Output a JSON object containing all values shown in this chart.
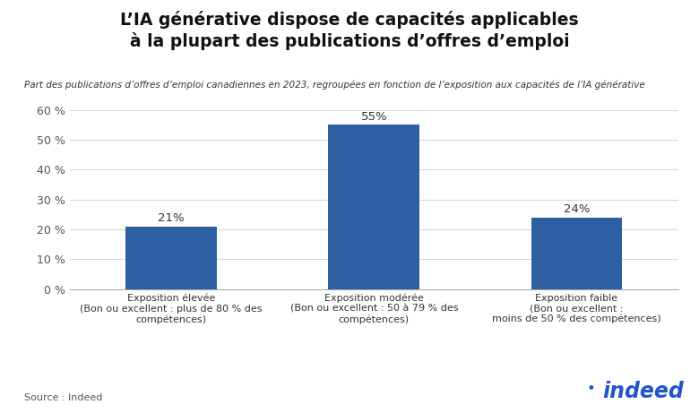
{
  "title_line1": "L’IA générative dispose de capacités applicables",
  "title_line2": "à la plupart des publications d’offres d’emploi",
  "subtitle": "Part des publications d’offres d’emploi canadiennes en 2023, regroupées en fonction de l’exposition aux capacités de l’IA générative",
  "categories": [
    "Exposition élevée\n(Bon ou excellent : plus de 80 % des\ncompétences)",
    "Exposition modérée\n(Bon ou excellent : 50 à 79 % des\ncompétences)",
    "Exposition faible\n(Bon ou excellent :\nmoins de 50 % des compétences)"
  ],
  "values": [
    21,
    55,
    24
  ],
  "bar_color": "#2E5FA3",
  "bar_labels": [
    "21%",
    "55%",
    "24%"
  ],
  "yticks": [
    0,
    10,
    20,
    30,
    40,
    50,
    60
  ],
  "ytick_labels": [
    "0 %",
    "10 %",
    "20 %",
    "30 %",
    "40 %",
    "50 %",
    "60 %"
  ],
  "ylim": [
    0,
    65
  ],
  "source_text": "Source : Indeed",
  "background_color": "#ffffff",
  "title_fontsize": 13.5,
  "subtitle_fontsize": 7.5,
  "bar_label_fontsize": 9.5,
  "tick_fontsize": 9,
  "category_fontsize": 8,
  "source_fontsize": 8
}
